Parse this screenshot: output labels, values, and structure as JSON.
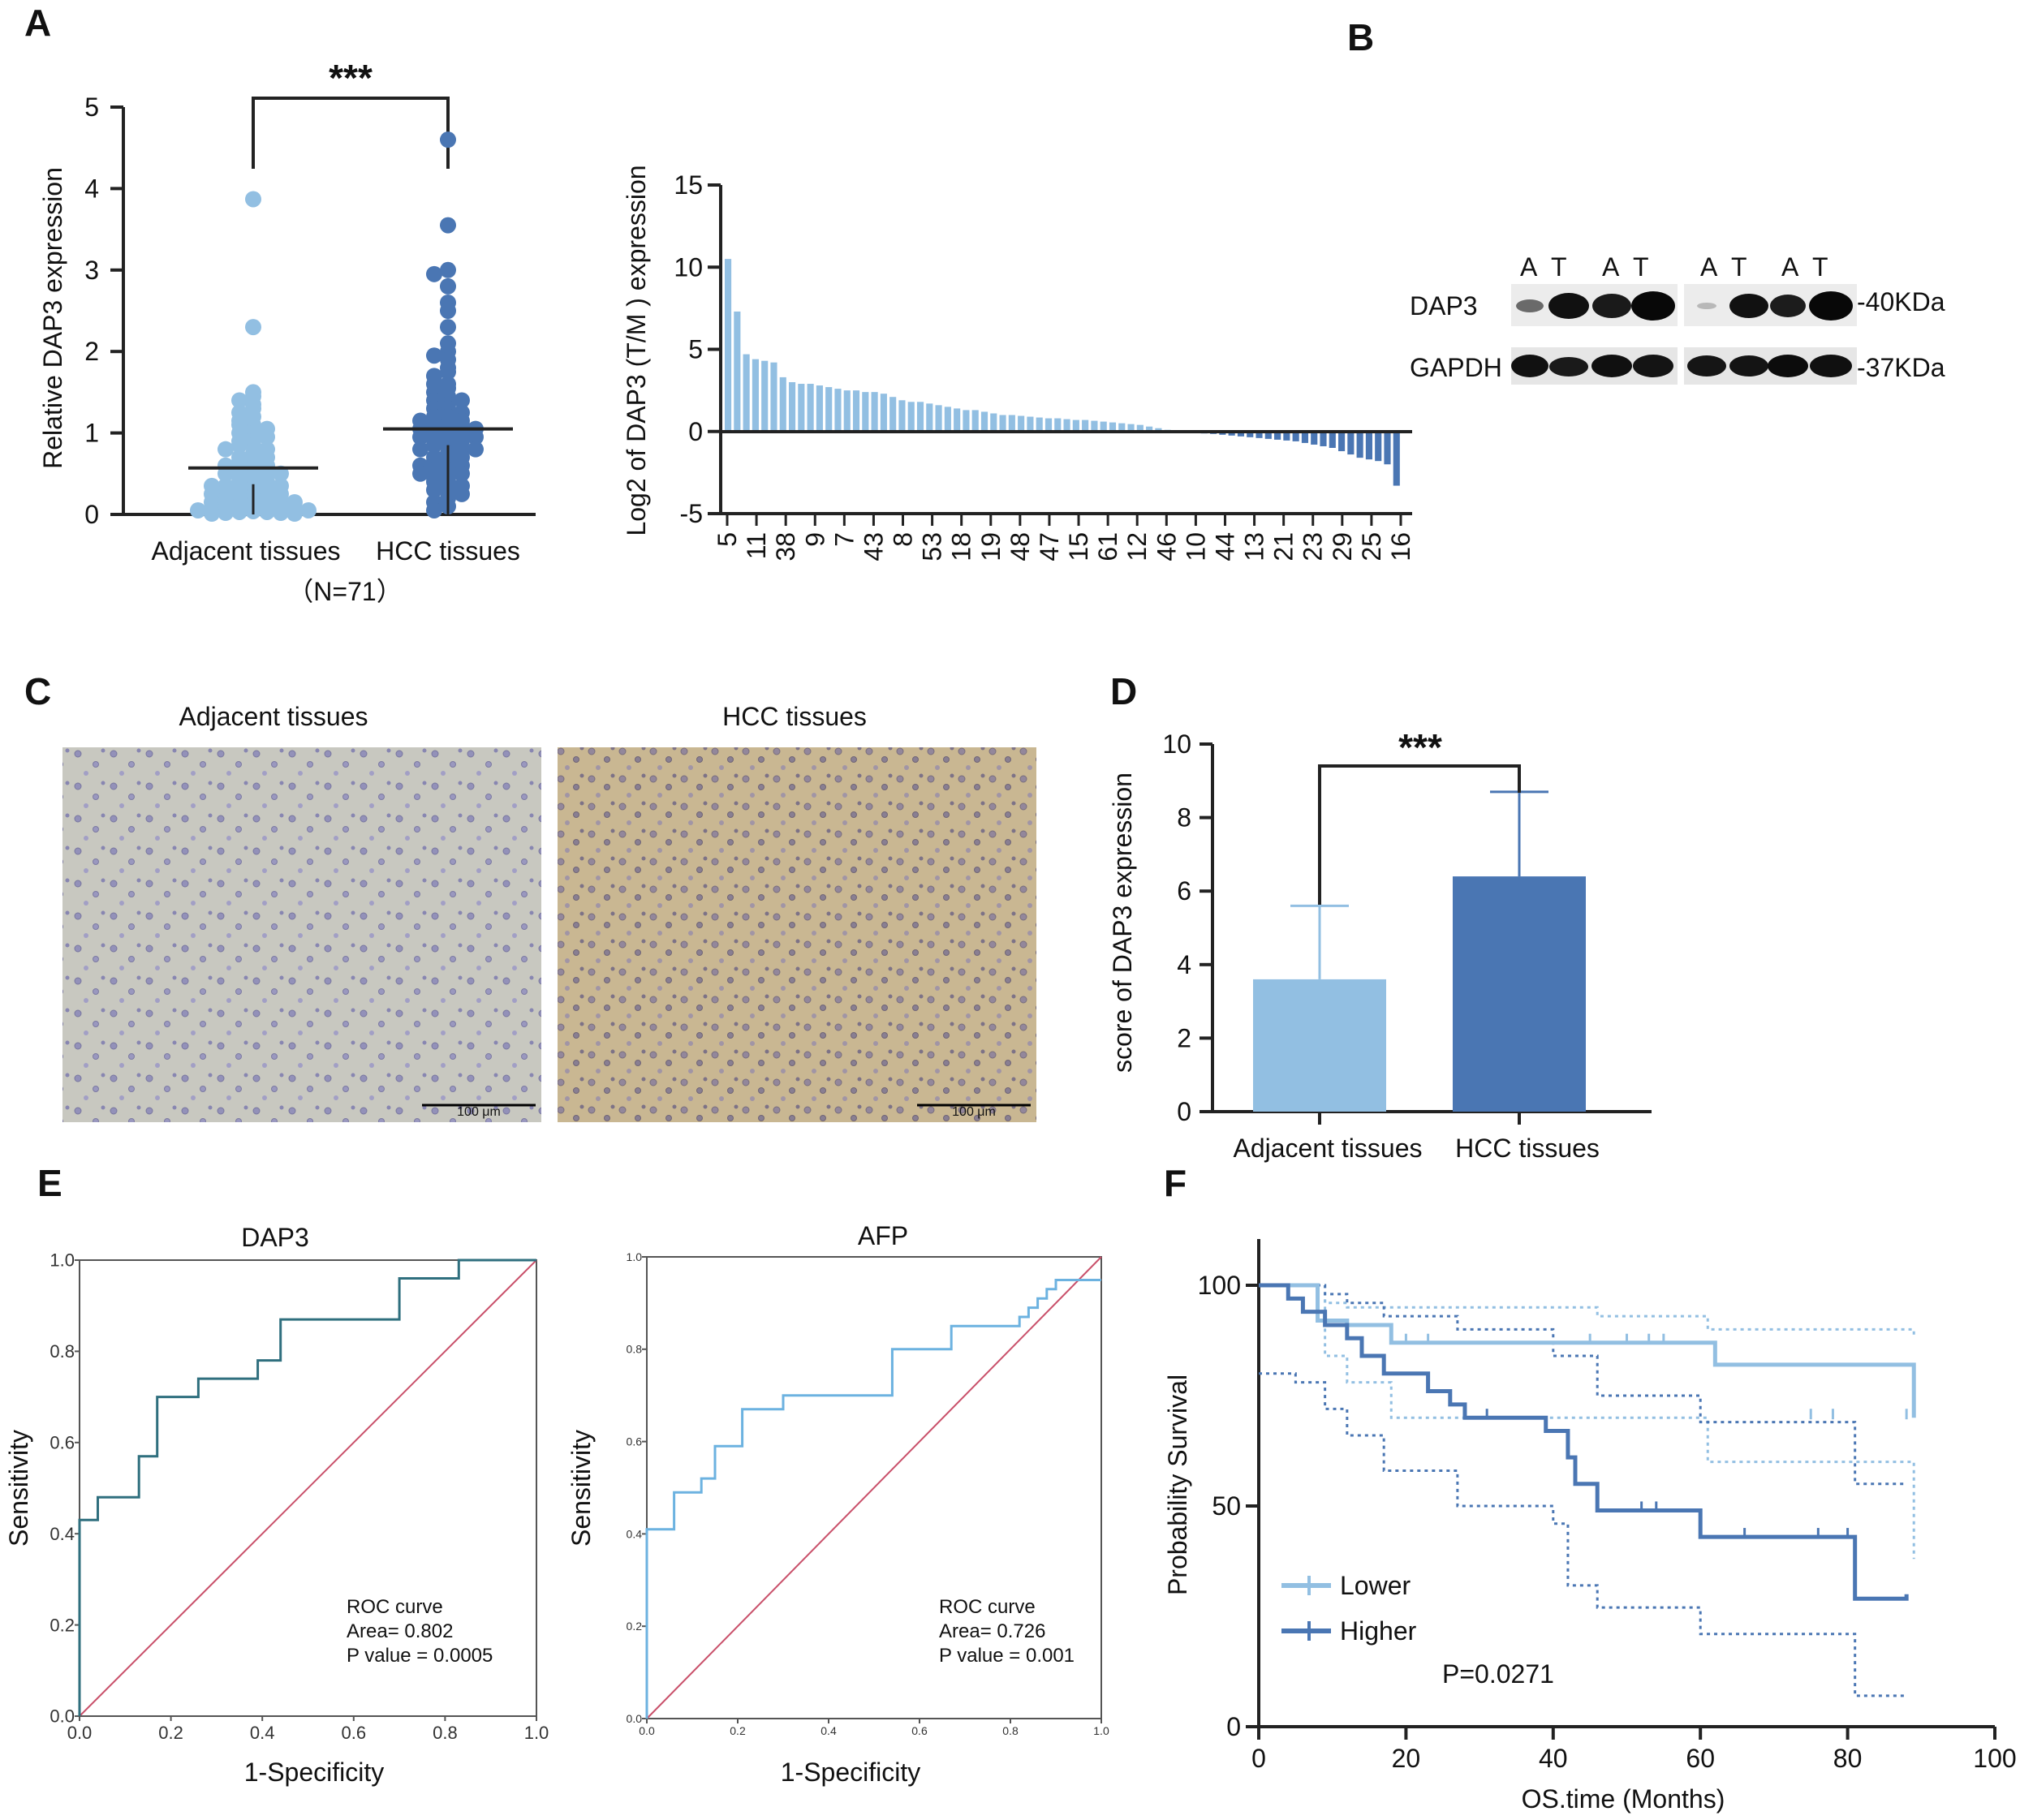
{
  "colors": {
    "light": "#92bfe2",
    "dark": "#4a76b3",
    "diag": "#c9506a",
    "dap3_roc": "#2f6f7e",
    "afp_roc": "#6cb2e0",
    "grey": "#666666"
  },
  "panels": {
    "A": "A",
    "B": "B",
    "C": "C",
    "D": "D",
    "E": "E",
    "F": "F"
  },
  "chart_data": [
    {
      "id": "A-scatter",
      "type": "scatter",
      "ylabel": "Relative DAP3 expression",
      "ylim": [
        0,
        5
      ],
      "yticks": [
        "0",
        "1",
        "2",
        "3",
        "4",
        "5"
      ],
      "categories": [
        "Adjacent tissues",
        "HCC tissues"
      ],
      "n_label": "（N=71）",
      "significance": "***",
      "series": [
        {
          "name": "Adjacent tissues",
          "values": [
            3.87,
            2.3,
            1.5,
            1.45,
            1.4,
            1.35,
            1.3,
            1.25,
            1.2,
            1.15,
            1.1,
            1.1,
            1.05,
            1.0,
            1.0,
            0.95,
            0.9,
            0.9,
            0.85,
            0.85,
            0.8,
            0.8,
            0.75,
            0.7,
            0.7,
            0.65,
            0.65,
            0.6,
            0.6,
            0.55,
            0.55,
            0.5,
            0.5,
            0.5,
            0.45,
            0.45,
            0.4,
            0.4,
            0.4,
            0.35,
            0.35,
            0.35,
            0.3,
            0.3,
            0.3,
            0.25,
            0.25,
            0.25,
            0.2,
            0.2,
            0.2,
            0.18,
            0.15,
            0.15,
            0.15,
            0.12,
            0.1,
            0.1,
            0.1,
            0.08,
            0.07,
            0.06,
            0.05,
            0.05,
            0.04,
            0.03,
            0.03,
            0.02,
            0.02,
            0.01,
            0.01
          ],
          "mean": 0.57
        },
        {
          "name": "HCC tissues",
          "values": [
            4.6,
            3.55,
            3.0,
            2.95,
            2.8,
            2.6,
            2.5,
            2.3,
            2.1,
            2.0,
            1.95,
            1.9,
            1.8,
            1.75,
            1.7,
            1.6,
            1.6,
            1.55,
            1.5,
            1.45,
            1.4,
            1.4,
            1.35,
            1.3,
            1.3,
            1.25,
            1.2,
            1.2,
            1.15,
            1.15,
            1.1,
            1.1,
            1.1,
            1.05,
            1.05,
            1.0,
            1.0,
            1.0,
            0.95,
            0.95,
            0.9,
            0.9,
            0.9,
            0.85,
            0.85,
            0.8,
            0.8,
            0.8,
            0.75,
            0.7,
            0.7,
            0.65,
            0.65,
            0.6,
            0.6,
            0.55,
            0.55,
            0.5,
            0.5,
            0.45,
            0.45,
            0.4,
            0.4,
            0.35,
            0.3,
            0.3,
            0.25,
            0.2,
            0.15,
            0.1,
            0.05
          ],
          "mean": 1.05
        }
      ]
    },
    {
      "id": "A-waterfall",
      "type": "bar",
      "ylabel": "Log2 of DAP3 (T/M ) expression",
      "ylim": [
        -5,
        15
      ],
      "yticks": [
        "-5",
        "0",
        "5",
        "10",
        "15"
      ],
      "xtick_labels": [
        "5",
        "11",
        "38",
        "9",
        "7",
        "43",
        "8",
        "53",
        "18",
        "19",
        "48",
        "47",
        "15",
        "61",
        "12",
        "46",
        "10",
        "44",
        "13",
        "21",
        "23",
        "29",
        "25",
        "16"
      ],
      "values": [
        10.5,
        7.3,
        4.7,
        4.4,
        4.3,
        4.2,
        3.3,
        3.0,
        2.9,
        2.9,
        2.8,
        2.7,
        2.6,
        2.5,
        2.5,
        2.4,
        2.4,
        2.3,
        2.1,
        1.9,
        1.8,
        1.8,
        1.7,
        1.6,
        1.5,
        1.4,
        1.3,
        1.3,
        1.2,
        1.1,
        1.0,
        1.0,
        0.95,
        0.9,
        0.85,
        0.8,
        0.8,
        0.75,
        0.7,
        0.7,
        0.65,
        0.6,
        0.55,
        0.5,
        0.45,
        0.4,
        0.3,
        0.2,
        0.1,
        0.05,
        -0.05,
        -0.1,
        -0.12,
        -0.15,
        -0.2,
        -0.25,
        -0.3,
        -0.35,
        -0.4,
        -0.45,
        -0.5,
        -0.55,
        -0.6,
        -0.7,
        -0.8,
        -0.9,
        -1.0,
        -1.2,
        -1.4,
        -1.6,
        -1.7,
        -1.8,
        -2.0,
        -3.3
      ]
    },
    {
      "id": "D-bar",
      "type": "bar",
      "ylabel": "score of DAP3 expression",
      "ylim": [
        0,
        10
      ],
      "yticks": [
        "0",
        "2",
        "4",
        "6",
        "8",
        "10"
      ],
      "categories": [
        "Adjacent tissues",
        "HCC tissues"
      ],
      "values": [
        3.6,
        6.4
      ],
      "errors": [
        2.0,
        2.3
      ],
      "significance": "***"
    },
    {
      "id": "E-DAP3",
      "type": "line",
      "title": "DAP3",
      "xlabel": "1-Specificity",
      "ylabel": "Sensitivity",
      "ticks": [
        "0.0",
        "0.2",
        "0.4",
        "0.6",
        "0.8",
        "1.0"
      ],
      "annotation": [
        "ROC curve",
        "Area= 0.802",
        "P value = 0.0005"
      ],
      "fpr": [
        0,
        0,
        0.04,
        0.04,
        0.13,
        0.13,
        0.17,
        0.17,
        0.26,
        0.26,
        0.39,
        0.39,
        0.44,
        0.44,
        0.7,
        0.7,
        0.83,
        0.83,
        1.0
      ],
      "tpr": [
        0,
        0.43,
        0.43,
        0.48,
        0.48,
        0.57,
        0.57,
        0.7,
        0.7,
        0.74,
        0.74,
        0.78,
        0.78,
        0.87,
        0.87,
        0.96,
        0.96,
        1.0,
        1.0
      ]
    },
    {
      "id": "E-AFP",
      "type": "line",
      "title": "AFP",
      "xlabel": "1-Specificity",
      "ylabel": "Sensitivity",
      "ticks": [
        "0.0",
        "0.2",
        "0.4",
        "0.6",
        "0.8",
        "1.0"
      ],
      "annotation": [
        "ROC curve",
        "Area= 0.726",
        "P value = 0.001"
      ],
      "fpr": [
        0,
        0,
        0.06,
        0.06,
        0.12,
        0.12,
        0.15,
        0.15,
        0.21,
        0.21,
        0.3,
        0.3,
        0.54,
        0.54,
        0.67,
        0.67,
        0.82,
        0.82,
        0.84,
        0.84,
        0.86,
        0.86,
        0.88,
        0.88,
        0.9,
        0.9,
        0.93,
        0.93,
        1.0
      ],
      "tpr": [
        0,
        0.41,
        0.41,
        0.49,
        0.49,
        0.52,
        0.52,
        0.59,
        0.59,
        0.67,
        0.67,
        0.7,
        0.7,
        0.8,
        0.8,
        0.85,
        0.85,
        0.87,
        0.87,
        0.89,
        0.89,
        0.91,
        0.91,
        0.93,
        0.93,
        0.95,
        0.95,
        0.95,
        0.95
      ]
    },
    {
      "id": "F-KM",
      "type": "line",
      "xlabel": "OS.time (Months)",
      "ylabel": "Probability Survival",
      "xticks": [
        "0",
        "20",
        "40",
        "60",
        "80",
        "100"
      ],
      "yticks": [
        "0",
        "50",
        "100"
      ],
      "pvalue": "P=0.0271",
      "series": [
        {
          "name": "Lower",
          "x": [
            0,
            7,
            8,
            12,
            18,
            46,
            62,
            89
          ],
          "y": [
            100,
            100,
            92,
            91,
            87,
            87,
            82,
            70
          ],
          "upper_x": [
            0,
            9,
            12,
            46,
            61,
            89
          ],
          "upper_y": [
            100,
            96,
            95,
            93,
            90,
            88
          ],
          "lower_x": [
            0,
            5,
            9,
            12,
            18,
            46,
            61,
            89
          ],
          "lower_y": [
            100,
            100,
            84,
            78,
            70,
            70,
            60,
            38
          ],
          "censor_x": [
            20,
            23,
            45,
            50,
            53,
            55,
            75,
            78,
            88
          ],
          "censor_y": [
            87,
            87,
            87,
            87,
            87,
            87,
            70,
            70,
            70
          ]
        },
        {
          "name": "Higher",
          "x": [
            0,
            4,
            6,
            9,
            12,
            14,
            17,
            23,
            26,
            28,
            39,
            42,
            43,
            46,
            60,
            81,
            88
          ],
          "y": [
            100,
            97,
            94,
            91,
            88,
            84,
            80,
            76,
            73,
            70,
            67,
            61,
            55,
            49,
            43,
            29,
            30
          ],
          "upper_x": [
            0,
            9,
            12,
            17,
            27,
            40,
            46,
            60,
            81,
            88
          ],
          "upper_y": [
            100,
            98,
            96,
            93,
            90,
            84,
            75,
            69,
            55,
            55
          ],
          "lower_x": [
            0,
            5,
            9,
            12,
            17,
            27,
            40,
            42,
            46,
            60,
            81,
            88
          ],
          "lower_y": [
            80,
            78,
            72,
            66,
            58,
            50,
            46,
            32,
            27,
            21,
            7,
            7
          ],
          "censor_x": [
            31,
            52,
            54,
            66,
            76,
            80
          ],
          "censor_y": [
            70,
            49,
            49,
            43,
            43,
            43
          ]
        }
      ]
    }
  ],
  "western_blot": {
    "lanes": [
      "A",
      "T",
      "A",
      "T",
      "A",
      "T",
      "A",
      "T"
    ],
    "rows": [
      "DAP3",
      "GAPDH"
    ],
    "sizes": [
      "-40KDa",
      "-37KDa"
    ]
  },
  "ihc": {
    "titles": [
      "Adjacent tissues",
      "HCC tissues"
    ],
    "scale_label": "100 μm"
  }
}
